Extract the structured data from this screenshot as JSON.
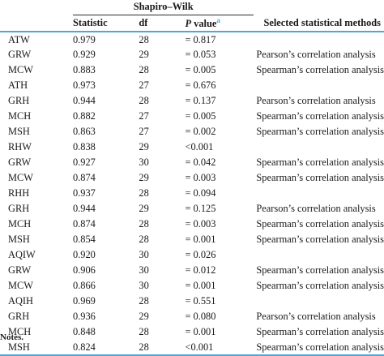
{
  "header": {
    "group_label": "Shapiro–Wilk",
    "col_statistic": "Statistic",
    "col_df": "df",
    "col_p_italic": "P",
    "col_p_rest": " value",
    "col_p_note": "a",
    "col_method": "Selected statistical methods"
  },
  "rows": [
    {
      "label": "ATW",
      "statistic": "0.979",
      "df": "28",
      "p": "= 0.817",
      "method": ""
    },
    {
      "label": "GRW",
      "statistic": "0.929",
      "df": "29",
      "p": "= 0.053",
      "method": "Pearson’s correlation analysis"
    },
    {
      "label": "MCW",
      "statistic": "0.883",
      "df": "28",
      "p": "= 0.005",
      "method": "Spearman’s correlation analysis"
    },
    {
      "label": "ATH",
      "statistic": "0.973",
      "df": "27",
      "p": "= 0.676",
      "method": ""
    },
    {
      "label": "GRH",
      "statistic": "0.944",
      "df": "28",
      "p": "= 0.137",
      "method": "Pearson’s correlation analysis"
    },
    {
      "label": "MCH",
      "statistic": "0.882",
      "df": "27",
      "p": "= 0.005",
      "method": "Spearman’s correlation analysis"
    },
    {
      "label": "MSH",
      "statistic": "0.863",
      "df": "27",
      "p": "= 0.002",
      "method": "Spearman’s correlation analysis"
    },
    {
      "label": "RHW",
      "statistic": "0.838",
      "df": "29",
      "p": "<0.001",
      "method": ""
    },
    {
      "label": "GRW",
      "statistic": "0.927",
      "df": "30",
      "p": "= 0.042",
      "method": "Spearman’s correlation analysis"
    },
    {
      "label": "MCW",
      "statistic": "0.874",
      "df": "29",
      "p": "= 0.003",
      "method": "Spearman’s correlation analysis"
    },
    {
      "label": "RHH",
      "statistic": "0.937",
      "df": "28",
      "p": "= 0.094",
      "method": ""
    },
    {
      "label": "GRH",
      "statistic": "0.944",
      "df": "29",
      "p": "= 0.125",
      "method": "Pearson’s correlation analysis"
    },
    {
      "label": "MCH",
      "statistic": "0.874",
      "df": "28",
      "p": "= 0.003",
      "method": "Spearman’s correlation analysis"
    },
    {
      "label": "MSH",
      "statistic": "0.854",
      "df": "28",
      "p": "= 0.001",
      "method": "Spearman’s correlation analysis"
    },
    {
      "label": "AQIW",
      "statistic": "0.920",
      "df": "30",
      "p": "= 0.026",
      "method": ""
    },
    {
      "label": "GRW",
      "statistic": "0.906",
      "df": "30",
      "p": "= 0.012",
      "method": "Spearman’s correlation analysis"
    },
    {
      "label": "MCW",
      "statistic": "0.866",
      "df": "30",
      "p": "= 0.001",
      "method": "Spearman’s correlation analysis"
    },
    {
      "label": "AQIH",
      "statistic": "0.969",
      "df": "28",
      "p": "= 0.551",
      "method": ""
    },
    {
      "label": "GRH",
      "statistic": "0.936",
      "df": "29",
      "p": "= 0.080",
      "method": "Pearson’s correlation analysis"
    },
    {
      "label": "MCH",
      "statistic": "0.848",
      "df": "28",
      "p": "= 0.001",
      "method": "Spearman’s correlation analysis"
    },
    {
      "label": "MSH",
      "statistic": "0.824",
      "df": "28",
      "p": "<0.001",
      "method": "Spearman’s correlation analysis"
    }
  ],
  "notes_label": "Notes.",
  "colors": {
    "rule_accent": "#4fa7d6",
    "text": "#1a1a1a"
  }
}
